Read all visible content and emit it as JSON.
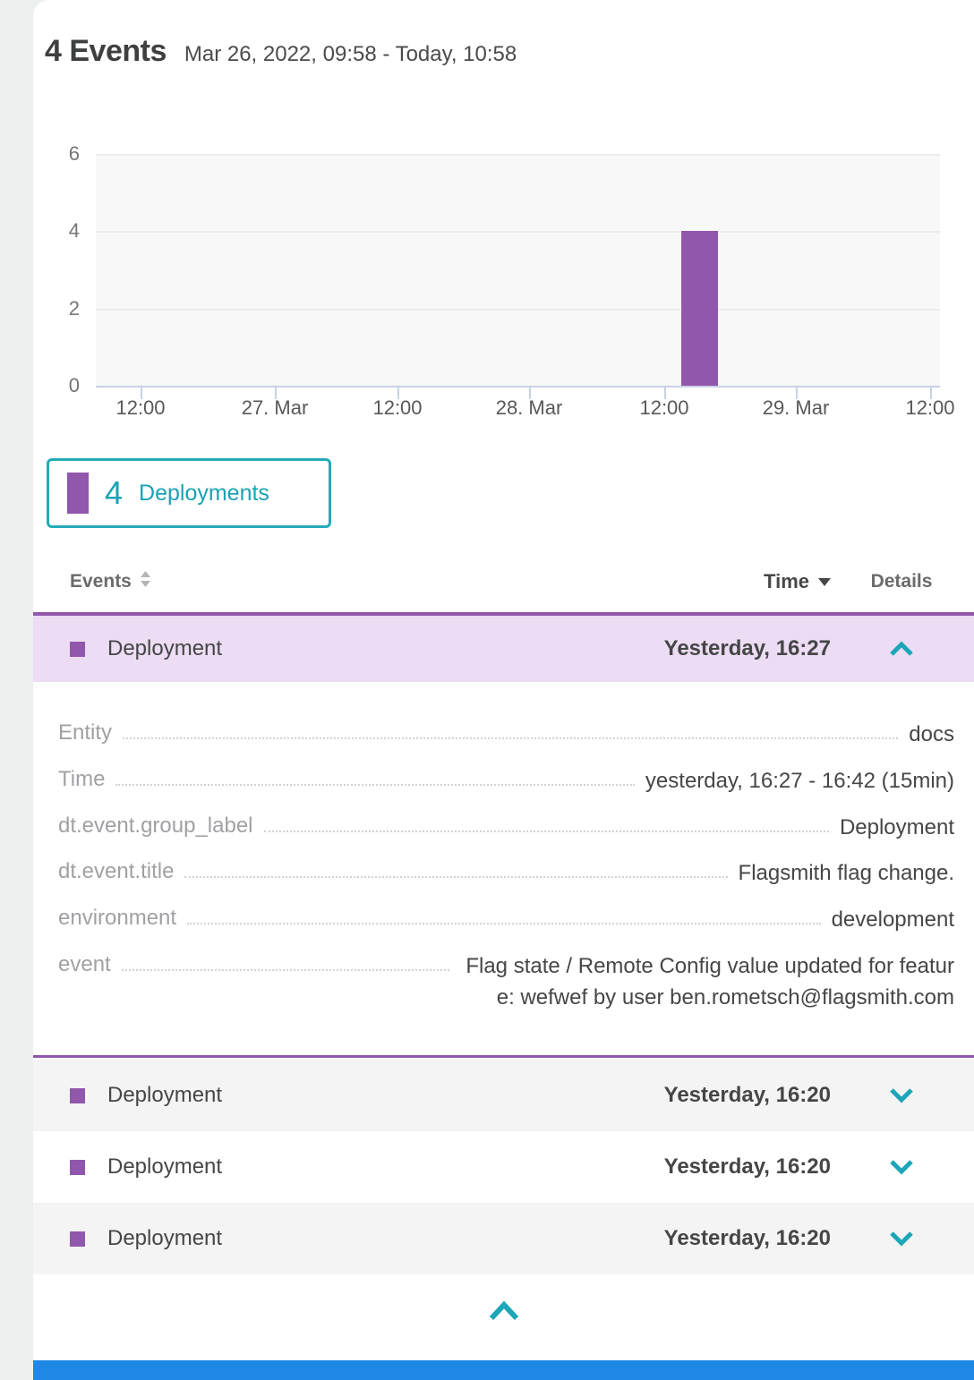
{
  "header": {
    "title": "4 Events",
    "time_range": "Mar 26, 2022, 09:58 - Today, 10:58"
  },
  "chart_data": {
    "type": "bar",
    "title": "4 Events",
    "xlabel": "",
    "ylabel": "",
    "ylim": [
      0,
      6
    ],
    "y_tick_labels": [
      "6",
      "4",
      "2",
      "0"
    ],
    "x_tick_labels": [
      "12:00",
      "27. Mar",
      "12:00",
      "28. Mar",
      "12:00",
      "29. Mar",
      "12:00"
    ],
    "grid": "horizontal",
    "plot_background": "#f8f8f8",
    "series": [
      {
        "name": "Deployments",
        "color": "#9157ac",
        "points": [
          {
            "x": "28. Mar ~16:00",
            "y": 4
          }
        ]
      }
    ],
    "legend_position": "below-left"
  },
  "legend": {
    "count": "4",
    "label": "Deployments",
    "swatch_color": "#9157ac",
    "border_color": "#25aaba",
    "text_color": "#1aa2b4"
  },
  "table": {
    "header": {
      "events_label": "Events",
      "time_label": "Time",
      "details_label": "Details"
    },
    "rows": [
      {
        "type_label": "Deployment",
        "time": "Yesterday, 16:27",
        "state": "expanded"
      },
      {
        "type_label": "Deployment",
        "time": "Yesterday, 16:20",
        "state": "collapsed"
      },
      {
        "type_label": "Deployment",
        "time": "Yesterday, 16:20",
        "state": "collapsed"
      },
      {
        "type_label": "Deployment",
        "time": "Yesterday, 16:20",
        "state": "collapsed"
      }
    ],
    "expanded_details": {
      "fields": [
        {
          "label": "Entity",
          "value": "docs"
        },
        {
          "label": "Time",
          "value": "yesterday, 16:27 - 16:42 (15min)"
        },
        {
          "label": "dt.event.group_label",
          "value": "Deployment"
        },
        {
          "label": "dt.event.title",
          "value": "Flagsmith flag change."
        },
        {
          "label": "environment",
          "value": "development"
        },
        {
          "label": "event",
          "value": "Flag state / Remote Config value updated for feature: wefwef by user ben.rometsch@flagsmith.com"
        }
      ]
    }
  },
  "colors": {
    "deployment_purple": "#9157ac",
    "expanded_row_background": "#ecdcf4",
    "teal_accent": "#1ba7b8",
    "text_dark": "#454646",
    "label_gray": "#9fa1a4",
    "axis_line": "#c9d2e3",
    "bottom_bar_blue": "#1e88e5"
  }
}
